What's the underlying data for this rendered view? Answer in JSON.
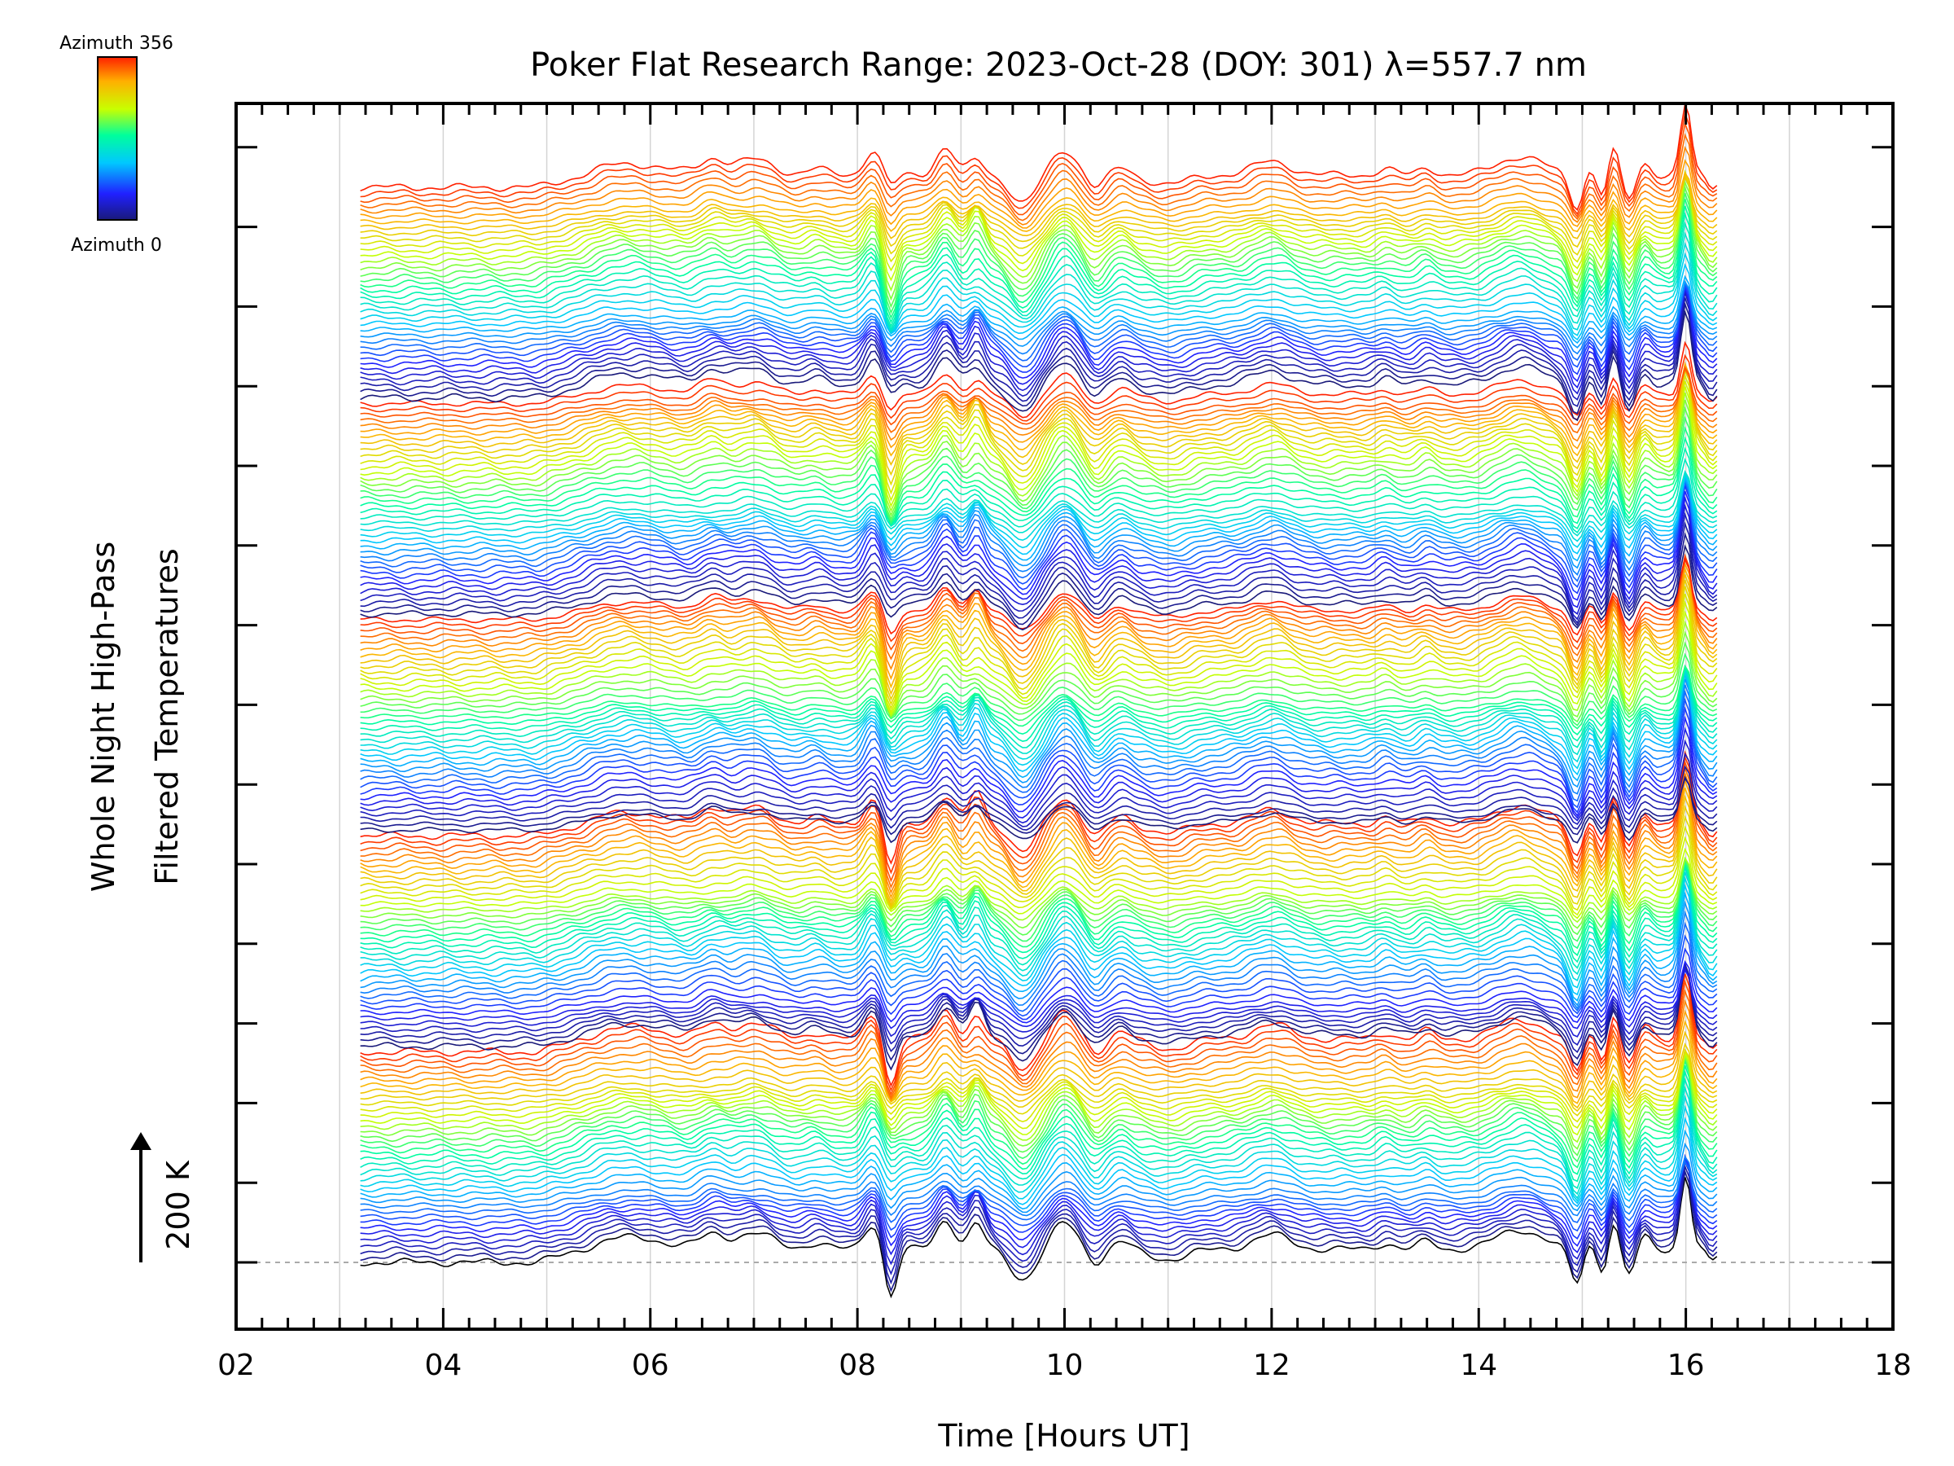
{
  "chart_data": {
    "type": "line",
    "title": "Poker Flat Research Range: 2023-Oct-28 (DOY: 301) λ=557.7 nm",
    "xlabel": "Time [Hours UT]",
    "ylabel_line1": "Whole Night High-Pass",
    "ylabel_line2": "Filtered Temperatures",
    "scale_label": "200 K",
    "x_ticks": [
      "02",
      "04",
      "06",
      "08",
      "10",
      "12",
      "14",
      "16",
      "18"
    ],
    "x_tick_values": [
      2,
      4,
      6,
      8,
      10,
      12,
      14,
      16,
      18
    ],
    "xlim": [
      2,
      18
    ],
    "x_start": 3.2,
    "x_end": 16.3,
    "colorbar": {
      "top_label": "Azimuth 356",
      "bottom_label": "Azimuth 0",
      "colors": [
        "#1a1a7a",
        "#2020ff",
        "#00c8ff",
        "#00ff9c",
        "#c8ff00",
        "#ffb000",
        "#ff2000"
      ]
    },
    "series_count": 190,
    "azimuth_range": [
      0,
      356
    ],
    "grid": true,
    "legend": "colorbar top-left"
  }
}
